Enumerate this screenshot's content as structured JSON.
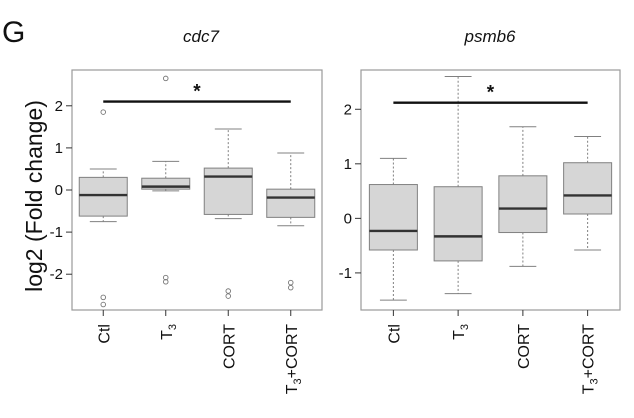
{
  "panel_letter": "G",
  "ylabel": "log2 (Fold change)",
  "colors": {
    "box_fill": "#d6d6d6",
    "box_stroke": "#808080",
    "median": "#333333",
    "frame": "#9a9a9a",
    "sig_bar": "#111111"
  },
  "chart_data": [
    {
      "type": "box",
      "title": "cdc7",
      "categories": [
        "Ctl",
        "T3",
        "CORT",
        "T3+CORT"
      ],
      "category_labels": [
        {
          "main": "Ctl",
          "sub": ""
        },
        {
          "main": "T",
          "sub": "3"
        },
        {
          "main": "CORT",
          "sub": ""
        },
        {
          "main": "T",
          "sub": "3",
          "rest": "+CORT"
        }
      ],
      "yticks": [
        "-2",
        "-1",
        "0",
        "1",
        "2"
      ],
      "ylim": [
        -2.85,
        2.85
      ],
      "boxes": [
        {
          "whisker_low": -0.75,
          "q1": -0.62,
          "median": -0.12,
          "q3": 0.3,
          "whisker_high": 0.5,
          "outliers": [
            1.85,
            -2.55,
            -2.72
          ]
        },
        {
          "whisker_low": -0.02,
          "q1": 0.02,
          "median": 0.08,
          "q3": 0.28,
          "whisker_high": 0.68,
          "outliers": [
            2.65,
            -2.08,
            -2.18
          ]
        },
        {
          "whisker_low": -0.68,
          "q1": -0.58,
          "median": 0.32,
          "q3": 0.52,
          "whisker_high": 1.45,
          "outliers": [
            -2.4,
            -2.52
          ]
        },
        {
          "whisker_low": -0.85,
          "q1": -0.65,
          "median": -0.18,
          "q3": 0.02,
          "whisker_high": 0.88,
          "outliers": [
            -2.2,
            -2.32
          ]
        }
      ],
      "significance": {
        "from": 0,
        "to": 3,
        "y": 2.1,
        "label": "*"
      }
    },
    {
      "type": "box",
      "title": "psmb6",
      "categories": [
        "Ctl",
        "T3",
        "CORT",
        "T3+CORT"
      ],
      "category_labels": [
        {
          "main": "Ctl",
          "sub": ""
        },
        {
          "main": "T",
          "sub": "3"
        },
        {
          "main": "CORT",
          "sub": ""
        },
        {
          "main": "T",
          "sub": "3",
          "rest": "+CORT"
        }
      ],
      "yticks": [
        "-1",
        "0",
        "1",
        "2"
      ],
      "ylim": [
        -1.68,
        2.72
      ],
      "boxes": [
        {
          "whisker_low": -1.5,
          "q1": -0.58,
          "median": -0.23,
          "q3": 0.62,
          "whisker_high": 1.1,
          "outliers": []
        },
        {
          "whisker_low": -1.38,
          "q1": -0.78,
          "median": -0.33,
          "q3": 0.58,
          "whisker_high": 2.6,
          "outliers": []
        },
        {
          "whisker_low": -0.88,
          "q1": -0.26,
          "median": 0.18,
          "q3": 0.78,
          "whisker_high": 1.68,
          "outliers": []
        },
        {
          "whisker_low": -0.58,
          "q1": 0.08,
          "median": 0.42,
          "q3": 1.02,
          "whisker_high": 1.5,
          "outliers": []
        }
      ],
      "significance": {
        "from": 0,
        "to": 3,
        "y": 2.12,
        "label": "*"
      }
    }
  ]
}
